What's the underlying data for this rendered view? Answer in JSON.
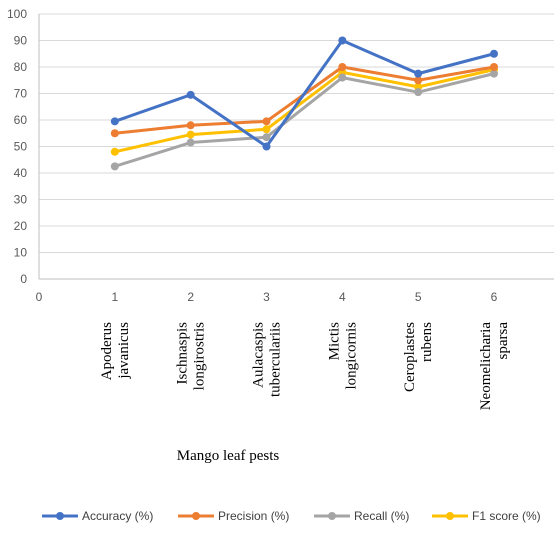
{
  "chart_data": {
    "type": "line",
    "title": "",
    "xlabel": "Mango leaf pests",
    "ylabel": "",
    "x": [
      1,
      2,
      3,
      4,
      5,
      6
    ],
    "xlim": [
      0,
      7
    ],
    "ylim": [
      0,
      100
    ],
    "x_ticks": [
      "0",
      "1",
      "2",
      "3",
      "4",
      "5",
      "6"
    ],
    "y_ticks": [
      "0",
      "10",
      "20",
      "30",
      "40",
      "50",
      "60",
      "70",
      "80",
      "90",
      "100"
    ],
    "categories": [
      [
        "Apoderus",
        "javanicus"
      ],
      [
        "Ischnaspis",
        "longirostris"
      ],
      [
        "Aulacaspis",
        "tuberculariis"
      ],
      [
        "Mictis",
        "longicornis"
      ],
      [
        "Ceroplastes",
        "rubens"
      ],
      [
        "Neomelicharia",
        "sparsa"
      ]
    ],
    "grid": "horizontal",
    "legend_position": "bottom",
    "series": [
      {
        "name": "Accuracy (%)",
        "color": "#4472C4",
        "values": [
          59.5,
          69.5,
          50,
          90,
          77.5,
          85
        ]
      },
      {
        "name": "Precision (%)",
        "color": "#ED7D31",
        "values": [
          55,
          58,
          59.5,
          80,
          75,
          80
        ]
      },
      {
        "name": "Recall (%)",
        "color": "#A5A5A5",
        "values": [
          42.5,
          51.5,
          53.5,
          76,
          70.5,
          77.5
        ]
      },
      {
        "name": "F1 score (%)",
        "color": "#FFC000",
        "values": [
          48,
          54.5,
          56.5,
          78,
          72.5,
          79
        ]
      }
    ]
  }
}
